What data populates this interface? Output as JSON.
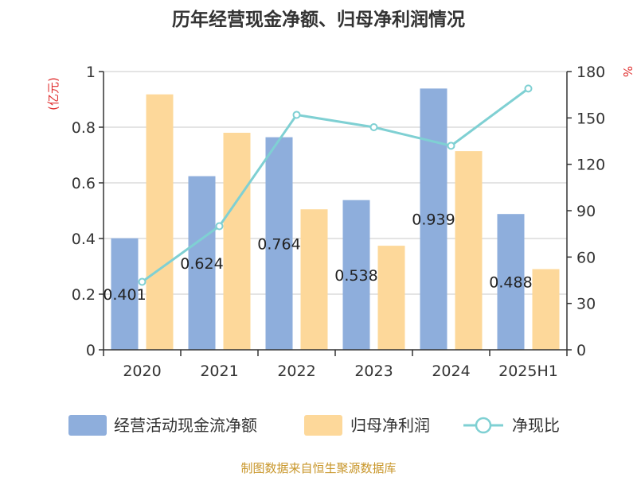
{
  "chart_data": {
    "type": "bar",
    "title": "历年经营现金净额、归母净利润情况",
    "categories": [
      "2020",
      "2021",
      "2022",
      "2023",
      "2024",
      "2025H1"
    ],
    "left_axis": {
      "unit": "(亿元)",
      "ticks": [
        "0",
        "0.2",
        "0.4",
        "0.6",
        "0.8",
        "1"
      ],
      "range": [
        0,
        1
      ]
    },
    "right_axis": {
      "unit": "%",
      "ticks": [
        "0",
        "30",
        "60",
        "90",
        "120",
        "150",
        "180"
      ],
      "range": [
        0,
        180
      ]
    },
    "series": [
      {
        "name": "经营活动现金流净额",
        "type": "bar",
        "axis": "left",
        "color": "#8eaedc",
        "values": [
          0.401,
          0.624,
          0.764,
          0.538,
          0.939,
          0.488
        ],
        "labels": [
          "0.401",
          "0.624",
          "0.764",
          "0.538",
          "0.939",
          "0.488"
        ]
      },
      {
        "name": "归母净利润",
        "type": "bar",
        "axis": "left",
        "color": "#fdd89a",
        "values": [
          0.918,
          0.78,
          0.505,
          0.374,
          0.714,
          0.29
        ]
      },
      {
        "name": "净现比",
        "type": "line",
        "axis": "right",
        "color": "#7fd0d3",
        "values": [
          44,
          80,
          152,
          144,
          132,
          169
        ]
      }
    ],
    "grid": true,
    "legend_position": "bottom",
    "source": "制图数据来自恒生聚源数据库"
  }
}
